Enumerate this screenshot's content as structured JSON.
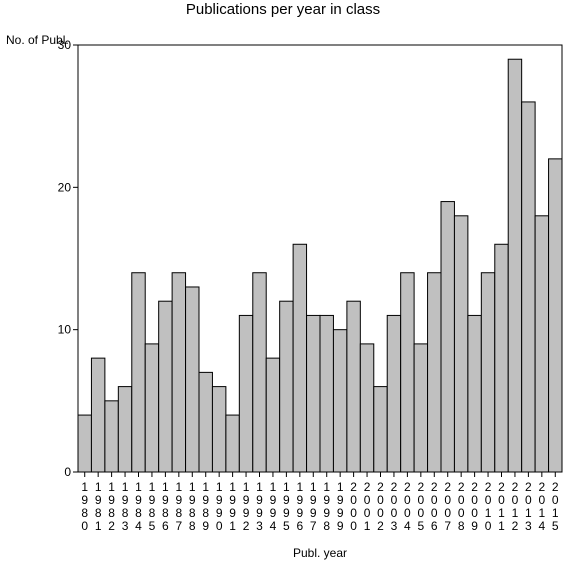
{
  "chart_data": {
    "type": "bar",
    "title": "Publications per year in class",
    "ylabel": "No. of Publ.",
    "xlabel": "Publ. year",
    "ylim": [
      0,
      30
    ],
    "yticks": [
      0,
      10,
      20,
      30
    ],
    "grid": false,
    "colors": {
      "bar_fill": "#c0c0c0",
      "bar_stroke": "#000000",
      "background": "#ffffff"
    },
    "categories": [
      "1980",
      "1981",
      "1982",
      "1983",
      "1984",
      "1985",
      "1986",
      "1987",
      "1988",
      "1989",
      "1990",
      "1991",
      "1992",
      "1993",
      "1994",
      "1995",
      "1996",
      "1997",
      "1998",
      "1999",
      "2000",
      "2001",
      "2002",
      "2003",
      "2004",
      "2005",
      "2006",
      "2007",
      "2008",
      "2009",
      "2010",
      "2011",
      "2012",
      "2013",
      "2014",
      "2015"
    ],
    "values": [
      4,
      8,
      5,
      6,
      14,
      9,
      12,
      14,
      13,
      7,
      6,
      4,
      11,
      14,
      8,
      12,
      16,
      11,
      11,
      10,
      12,
      9,
      6,
      11,
      14,
      9,
      14,
      19,
      18,
      11,
      14,
      16,
      29,
      26,
      18,
      22
    ]
  }
}
